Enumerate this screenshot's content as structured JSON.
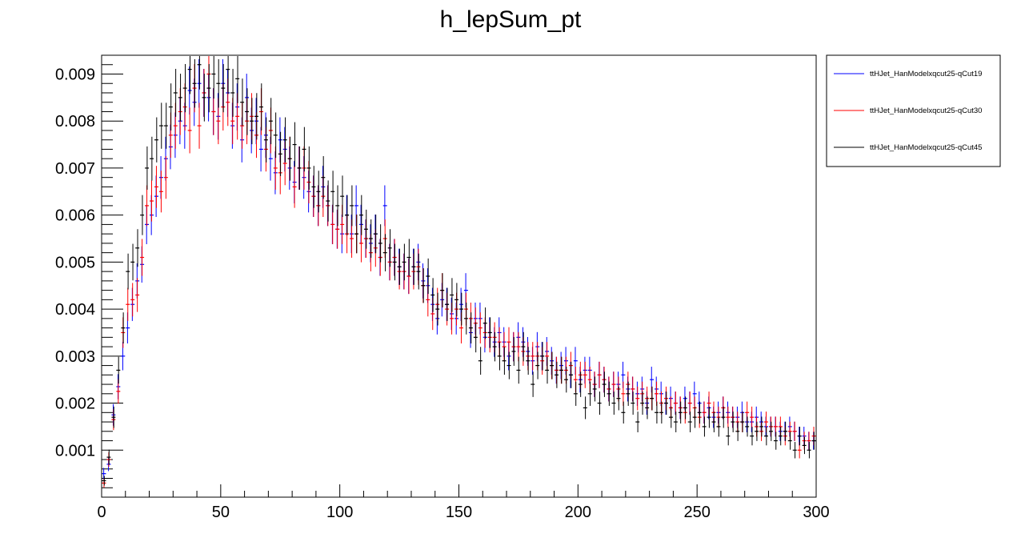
{
  "chart_data": {
    "type": "scatter",
    "title": "h_lepSum_pt",
    "xlabel": "",
    "ylabel": "",
    "xlim": [
      0,
      300
    ],
    "ylim": [
      0,
      0.0094
    ],
    "x_ticks": [
      {
        "value": 0,
        "label": "0"
      },
      {
        "value": 50,
        "label": "50"
      },
      {
        "value": 100,
        "label": "100"
      },
      {
        "value": 150,
        "label": "150"
      },
      {
        "value": 200,
        "label": "200"
      },
      {
        "value": 250,
        "label": "250"
      },
      {
        "value": 300,
        "label": "300"
      }
    ],
    "y_ticks": [
      {
        "value": 0.001,
        "label": "0.001"
      },
      {
        "value": 0.002,
        "label": "0.002"
      },
      {
        "value": 0.003,
        "label": "0.003"
      },
      {
        "value": 0.004,
        "label": "0.004"
      },
      {
        "value": 0.005,
        "label": "0.005"
      },
      {
        "value": 0.006,
        "label": "0.006"
      },
      {
        "value": 0.007,
        "label": "0.007"
      },
      {
        "value": 0.008,
        "label": "0.008"
      },
      {
        "value": 0.009,
        "label": "0.009"
      }
    ],
    "grid": false,
    "legend_position": "top-right, outside plot area",
    "bin_width": 2,
    "x": [
      1,
      3,
      5,
      7,
      9,
      11,
      13,
      15,
      17,
      19,
      21,
      23,
      25,
      27,
      29,
      31,
      33,
      35,
      37,
      39,
      41,
      43,
      45,
      47,
      49,
      51,
      53,
      55,
      57,
      59,
      61,
      63,
      65,
      67,
      69,
      71,
      73,
      75,
      77,
      79,
      81,
      83,
      85,
      87,
      89,
      91,
      93,
      95,
      97,
      99,
      101,
      103,
      105,
      107,
      109,
      111,
      113,
      115,
      117,
      119,
      121,
      123,
      125,
      127,
      129,
      131,
      133,
      135,
      137,
      139,
      141,
      143,
      145,
      147,
      149,
      151,
      153,
      155,
      157,
      159,
      161,
      163,
      165,
      167,
      169,
      171,
      173,
      175,
      177,
      179,
      181,
      183,
      185,
      187,
      189,
      191,
      193,
      195,
      197,
      199,
      201,
      203,
      205,
      207,
      209,
      211,
      213,
      215,
      217,
      219,
      221,
      223,
      225,
      227,
      229,
      231,
      233,
      235,
      237,
      239,
      241,
      243,
      245,
      247,
      249,
      251,
      253,
      255,
      257,
      259,
      261,
      263,
      265,
      267,
      269,
      271,
      273,
      275,
      277,
      279,
      281,
      283,
      285,
      287,
      289,
      291,
      293,
      295,
      297,
      299
    ],
    "series": [
      {
        "name": "ttHJet_HanModelxqcut25-qCut19",
        "color": "#0000ff",
        "values": [
          0.0005,
          0.0007,
          0.00175,
          0.00235,
          0.003,
          0.0036,
          0.0041,
          0.0046,
          0.00495,
          0.0058,
          0.006,
          0.0064,
          0.0068,
          0.0072,
          0.00745,
          0.0077,
          0.008,
          0.0079,
          0.00865,
          0.0084,
          0.0088,
          0.0086,
          0.0085,
          0.0082,
          0.0081,
          0.0088,
          0.0086,
          0.0079,
          0.0083,
          0.0076,
          0.0085,
          0.0078,
          0.008,
          0.0074,
          0.0077,
          0.0072,
          0.0069,
          0.0076,
          0.0074,
          0.007,
          0.0067,
          0.007,
          0.0068,
          0.0065,
          0.0064,
          0.0062,
          0.0066,
          0.0062,
          0.0058,
          0.0057,
          0.0056,
          0.006,
          0.0056,
          0.0062,
          0.0058,
          0.0055,
          0.0054,
          0.0056,
          0.0051,
          0.0062,
          0.005,
          0.0051,
          0.0049,
          0.0048,
          0.0047,
          0.0049,
          0.005,
          0.0046,
          0.0045,
          0.0041,
          0.0038,
          0.0042,
          0.0041,
          0.0039,
          0.0038,
          0.0041,
          0.0044,
          0.0035,
          0.0038,
          0.0038,
          0.0034,
          0.0035,
          0.0033,
          0.0035,
          0.0033,
          0.003,
          0.0032,
          0.0034,
          0.0033,
          0.0031,
          0.0029,
          0.0032,
          0.003,
          0.0031,
          0.0029,
          0.0027,
          0.0028,
          0.0029,
          0.0026,
          0.0029,
          0.0025,
          0.0027,
          0.0027,
          0.0024,
          0.0026,
          0.0025,
          0.0023,
          0.0024,
          0.0024,
          0.0026,
          0.0023,
          0.0023,
          0.0022,
          0.0023,
          0.002,
          0.0025,
          0.0023,
          0.0022,
          0.002,
          0.0021,
          0.002,
          0.0019,
          0.0021,
          0.002,
          0.0022,
          0.002,
          0.0018,
          0.0019,
          0.0017,
          0.0018,
          0.0019,
          0.0018,
          0.0017,
          0.0017,
          0.0018,
          0.0016,
          0.0016,
          0.0017,
          0.0016,
          0.0015,
          0.0015,
          0.0015,
          0.0014,
          0.0014,
          0.0015,
          0.0014,
          0.0013,
          0.0013,
          0.0012,
          0.0012
        ]
      },
      {
        "name": "ttHJet_HanModelxqcut25-qCut30",
        "color": "#ff0000",
        "values": [
          0.0003,
          0.0008,
          0.00165,
          0.00225,
          0.0035,
          0.0041,
          0.0042,
          0.0043,
          0.0051,
          0.0062,
          0.0063,
          0.0066,
          0.0065,
          0.0068,
          0.0077,
          0.0079,
          0.0082,
          0.0083,
          0.0078,
          0.0087,
          0.0079,
          0.0086,
          0.009,
          0.0082,
          0.008,
          0.0083,
          0.0084,
          0.008,
          0.0081,
          0.0079,
          0.008,
          0.0081,
          0.0077,
          0.0082,
          0.0074,
          0.0078,
          0.007,
          0.0069,
          0.0071,
          0.0072,
          0.0066,
          0.007,
          0.007,
          0.0067,
          0.0064,
          0.0062,
          0.0064,
          0.0062,
          0.0058,
          0.0057,
          0.0058,
          0.0056,
          0.0055,
          0.0056,
          0.0054,
          0.0055,
          0.0052,
          0.0053,
          0.0051,
          0.0055,
          0.005,
          0.0051,
          0.0048,
          0.0048,
          0.0047,
          0.0048,
          0.0049,
          0.0045,
          0.0042,
          0.0039,
          0.0041,
          0.0044,
          0.004,
          0.0038,
          0.004,
          0.0036,
          0.004,
          0.0038,
          0.0037,
          0.0036,
          0.0035,
          0.0034,
          0.0034,
          0.0033,
          0.0032,
          0.0033,
          0.0032,
          0.0032,
          0.0031,
          0.003,
          0.003,
          0.003,
          0.0029,
          0.003,
          0.0028,
          0.0027,
          0.0027,
          0.0027,
          0.0028,
          0.0025,
          0.0026,
          0.0026,
          0.0025,
          0.0024,
          0.0026,
          0.0025,
          0.0023,
          0.0024,
          0.0023,
          0.0022,
          0.0024,
          0.0023,
          0.0021,
          0.0022,
          0.0021,
          0.0021,
          0.0022,
          0.002,
          0.0021,
          0.0019,
          0.002,
          0.0019,
          0.0018,
          0.002,
          0.0019,
          0.0017,
          0.0018,
          0.002,
          0.0018,
          0.0017,
          0.0019,
          0.0017,
          0.0017,
          0.0016,
          0.0016,
          0.0018,
          0.0017,
          0.0015,
          0.0014,
          0.0016,
          0.0015,
          0.0015,
          0.0015,
          0.0013,
          0.0014,
          0.0014,
          0.001,
          0.0012,
          0.0012,
          0.0013
        ]
      },
      {
        "name": "ttHJet_HanModelxqcut25-qCut45",
        "color": "#000000",
        "values": [
          0.00035,
          0.00085,
          0.0017,
          0.0027,
          0.0036,
          0.0048,
          0.005,
          0.0053,
          0.006,
          0.007,
          0.0072,
          0.0076,
          0.0079,
          0.0079,
          0.0083,
          0.0086,
          0.0085,
          0.0087,
          0.0091,
          0.0088,
          0.0092,
          0.0085,
          0.0087,
          0.009,
          0.0088,
          0.0087,
          0.0091,
          0.0086,
          0.0089,
          0.0084,
          0.0082,
          0.008,
          0.0081,
          0.0083,
          0.0076,
          0.008,
          0.0077,
          0.0073,
          0.0076,
          0.0072,
          0.0075,
          0.007,
          0.0074,
          0.007,
          0.0066,
          0.0065,
          0.0068,
          0.0063,
          0.0065,
          0.0062,
          0.0064,
          0.006,
          0.0062,
          0.0056,
          0.006,
          0.0057,
          0.0055,
          0.0056,
          0.0054,
          0.0052,
          0.0053,
          0.005,
          0.0049,
          0.005,
          0.0051,
          0.0049,
          0.0048,
          0.0045,
          0.0047,
          0.0043,
          0.004,
          0.0044,
          0.0041,
          0.0043,
          0.0042,
          0.004,
          0.0038,
          0.0036,
          0.0034,
          0.0029,
          0.0037,
          0.0035,
          0.0032,
          0.003,
          0.0029,
          0.0028,
          0.0031,
          0.0027,
          0.0032,
          0.0029,
          0.0024,
          0.0028,
          0.003,
          0.0027,
          0.0028,
          0.0026,
          0.0027,
          0.0025,
          0.0026,
          0.0022,
          0.0024,
          0.0019,
          0.0022,
          0.0023,
          0.002,
          0.0024,
          0.0022,
          0.002,
          0.0021,
          0.0018,
          0.0022,
          0.002,
          0.0016,
          0.002,
          0.0019,
          0.0021,
          0.0018,
          0.0018,
          0.002,
          0.0017,
          0.0016,
          0.0018,
          0.0019,
          0.0016,
          0.0017,
          0.0018,
          0.0015,
          0.0017,
          0.0016,
          0.0015,
          0.0017,
          0.0013,
          0.0016,
          0.0014,
          0.0016,
          0.0015,
          0.0013,
          0.0014,
          0.0015,
          0.0013,
          0.0014,
          0.0012,
          0.0013,
          0.0014,
          0.0012,
          0.001,
          0.0013,
          0.0011,
          0.001,
          0.0012
        ]
      }
    ]
  }
}
